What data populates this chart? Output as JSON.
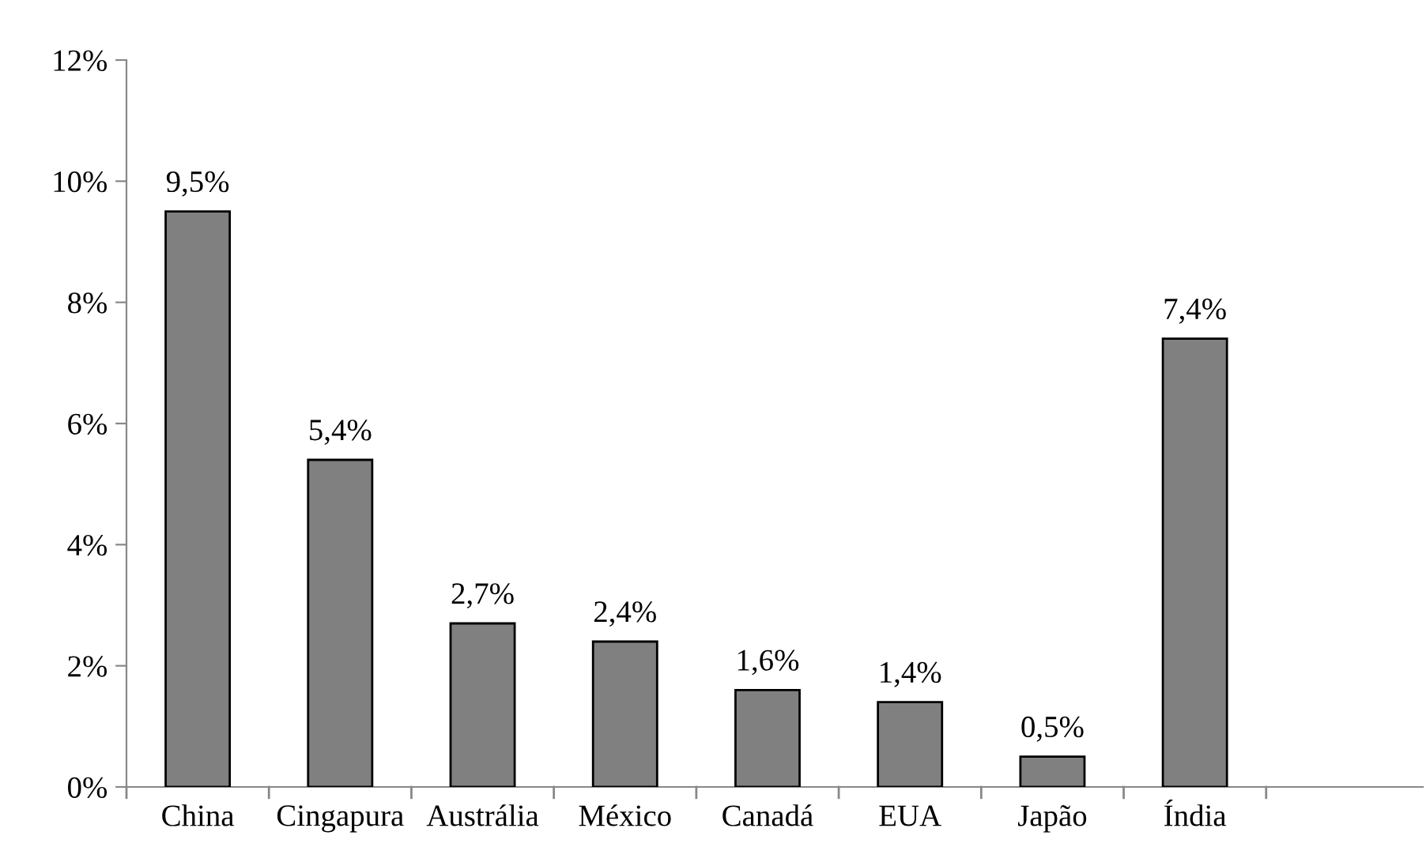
{
  "chart_data": {
    "type": "bar",
    "categories": [
      "China",
      "Cingapura",
      "Austrália",
      "México",
      "Canadá",
      "EUA",
      "Japão",
      "Índia",
      null
    ],
    "values": [
      9.5,
      5.4,
      2.7,
      2.4,
      1.6,
      1.4,
      0.5,
      7.4,
      null
    ],
    "value_labels": [
      "9,5%",
      "5,4%",
      "2,7%",
      "2,4%",
      "1,6%",
      "1,4%",
      "0,5%",
      "7,4%",
      null
    ],
    "color": "#808080",
    "ylim": [
      0,
      12
    ],
    "yticks": [
      {
        "value": 0,
        "label": "0%"
      },
      {
        "value": 2,
        "label": "2%"
      },
      {
        "value": 4,
        "label": "4%"
      },
      {
        "value": 6,
        "label": "6%"
      },
      {
        "value": 8,
        "label": "8%"
      },
      {
        "value": 10,
        "label": "10%"
      },
      {
        "value": 12,
        "label": "12%"
      }
    ],
    "grid": false,
    "legend": false
  }
}
